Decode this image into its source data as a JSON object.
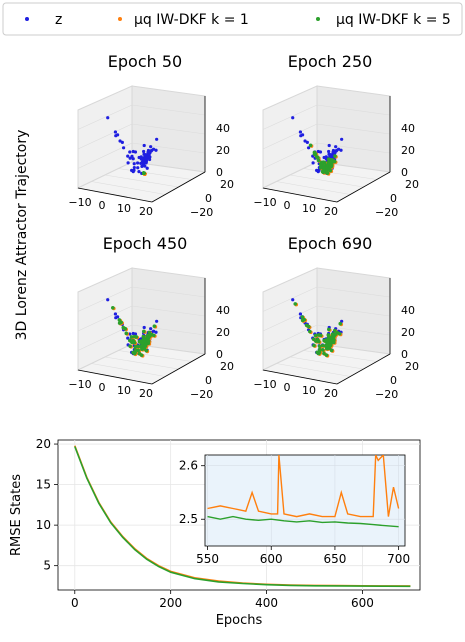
{
  "legend": {
    "entries": [
      {
        "label": "z",
        "color": "#1f1fe0"
      },
      {
        "label": "μq IW-DKF k = 1",
        "color": "#ff7f0e"
      },
      {
        "label": "μq IW-DKF k = 5",
        "color": "#2ca02c"
      }
    ]
  },
  "side_label": "3D Lorenz Attractor Trajectory",
  "chart_data": [
    {
      "type": "scatter",
      "subtype": "3d",
      "title": "Epoch 50",
      "x_ticks": [
        "−10",
        "0",
        "10",
        "20"
      ],
      "y_ticks": [
        "20",
        "0",
        "−20"
      ],
      "z_ticks": [
        "40",
        "20",
        "0"
      ],
      "series": [
        {
          "name": "z",
          "color": "#1f1fe0"
        },
        {
          "name": "μq IW-DKF k = 1",
          "color": "#ff7f0e"
        },
        {
          "name": "μq IW-DKF k = 5",
          "color": "#2ca02c"
        }
      ]
    },
    {
      "type": "scatter",
      "subtype": "3d",
      "title": "Epoch 250",
      "x_ticks": [
        "−10",
        "0",
        "10",
        "20"
      ],
      "y_ticks": [
        "20",
        "0",
        "−20"
      ],
      "z_ticks": [
        "40",
        "20",
        "0"
      ]
    },
    {
      "type": "scatter",
      "subtype": "3d",
      "title": "Epoch 450",
      "x_ticks": [
        "−10",
        "0",
        "10",
        "20"
      ],
      "y_ticks": [
        "20",
        "0",
        "−20"
      ],
      "z_ticks": [
        "40",
        "20",
        "0"
      ]
    },
    {
      "type": "scatter",
      "subtype": "3d",
      "title": "Epoch 690",
      "x_ticks": [
        "−10",
        "0",
        "10",
        "20"
      ],
      "y_ticks": [
        "20",
        "0",
        "−20"
      ],
      "z_ticks": [
        "40",
        "20",
        "0"
      ]
    },
    {
      "type": "line",
      "xlabel": "Epochs",
      "ylabel": "RMSE States",
      "xlim": [
        -35,
        720
      ],
      "ylim": [
        2,
        20.5
      ],
      "x_ticks": [
        0,
        200,
        400,
        600
      ],
      "y_ticks": [
        5,
        10,
        15,
        20
      ],
      "grid": true,
      "series": [
        {
          "name": "μq IW-DKF k = 1",
          "color": "#ff7f0e",
          "x": [
            0,
            25,
            50,
            75,
            100,
            125,
            150,
            175,
            200,
            250,
            300,
            350,
            400,
            450,
            500,
            550,
            600,
            650,
            700
          ],
          "y": [
            19.8,
            15.9,
            12.8,
            10.4,
            8.6,
            7.1,
            5.9,
            5.0,
            4.3,
            3.5,
            3.1,
            2.85,
            2.7,
            2.62,
            2.57,
            2.54,
            2.52,
            2.51,
            2.5
          ]
        },
        {
          "name": "μq IW-DKF k = 5",
          "color": "#2ca02c",
          "x": [
            0,
            25,
            50,
            75,
            100,
            125,
            150,
            175,
            200,
            250,
            300,
            350,
            400,
            450,
            500,
            550,
            600,
            650,
            700
          ],
          "y": [
            19.7,
            15.8,
            12.7,
            10.3,
            8.5,
            7.0,
            5.8,
            4.9,
            4.2,
            3.4,
            3.0,
            2.8,
            2.65,
            2.57,
            2.52,
            2.5,
            2.48,
            2.47,
            2.46
          ]
        }
      ],
      "inset": {
        "xlim": [
          548,
          705
        ],
        "ylim": [
          2.45,
          2.62
        ],
        "x_ticks": [
          550,
          600,
          650,
          700
        ],
        "y_ticks": [
          2.5,
          2.6
        ],
        "series": [
          {
            "name": "μq IW-DKF k = 1",
            "color": "#ff7f0e",
            "x": [
              550,
              560,
              570,
              580,
              585,
              590,
              600,
              605,
              606,
              610,
              620,
              630,
              640,
              650,
              655,
              660,
              670,
              680,
              682,
              684,
              688,
              692,
              696,
              700
            ],
            "y": [
              2.52,
              2.525,
              2.52,
              2.515,
              2.55,
              2.515,
              2.51,
              2.51,
              2.62,
              2.51,
              2.505,
              2.51,
              2.505,
              2.505,
              2.55,
              2.51,
              2.505,
              2.505,
              2.62,
              2.61,
              2.62,
              2.505,
              2.56,
              2.52
            ]
          },
          {
            "name": "μq IW-DKF k = 5",
            "color": "#2ca02c",
            "x": [
              550,
              560,
              570,
              580,
              590,
              600,
              610,
              620,
              630,
              640,
              650,
              660,
              670,
              680,
              690,
              700
            ],
            "y": [
              2.505,
              2.5,
              2.505,
              2.5,
              2.498,
              2.5,
              2.497,
              2.495,
              2.497,
              2.494,
              2.495,
              2.493,
              2.492,
              2.49,
              2.488,
              2.486
            ]
          }
        ]
      }
    }
  ]
}
